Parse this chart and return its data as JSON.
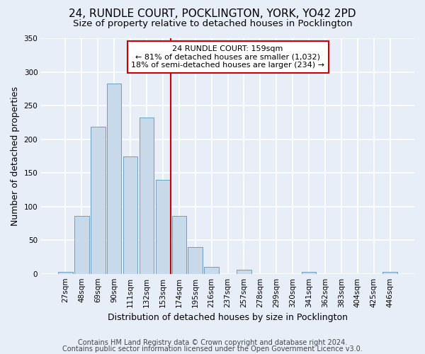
{
  "title1": "24, RUNDLE COURT, POCKLINGTON, YORK, YO42 2PD",
  "title2": "Size of property relative to detached houses in Pocklington",
  "xlabel": "Distribution of detached houses by size in Pocklington",
  "ylabel": "Number of detached properties",
  "footnote1": "Contains HM Land Registry data © Crown copyright and database right 2024.",
  "footnote2": "Contains public sector information licensed under the Open Government Licence v3.0.",
  "categories": [
    "27sqm",
    "48sqm",
    "69sqm",
    "90sqm",
    "111sqm",
    "132sqm",
    "153sqm",
    "174sqm",
    "195sqm",
    "216sqm",
    "237sqm",
    "257sqm",
    "278sqm",
    "299sqm",
    "320sqm",
    "341sqm",
    "362sqm",
    "383sqm",
    "404sqm",
    "425sqm",
    "446sqm"
  ],
  "values": [
    3,
    86,
    218,
    283,
    174,
    232,
    140,
    86,
    40,
    10,
    0,
    6,
    0,
    0,
    0,
    3,
    0,
    0,
    0,
    0,
    3
  ],
  "bar_color": "#c8d9ea",
  "bar_edge_color": "#6a9ec2",
  "vline_index": 6.5,
  "vline_color": "#cc0000",
  "annotation_text": "24 RUNDLE COURT: 159sqm\n← 81% of detached houses are smaller (1,032)\n18% of semi-detached houses are larger (234) →",
  "annotation_box_color": "white",
  "annotation_box_edge_color": "#cc0000",
  "ylim": [
    0,
    350
  ],
  "yticks": [
    0,
    50,
    100,
    150,
    200,
    250,
    300,
    350
  ],
  "background_color": "#e8eef8",
  "plot_background_color": "#e8eef8",
  "grid_color": "white",
  "title1_fontsize": 11,
  "title2_fontsize": 9.5,
  "axis_label_fontsize": 9,
  "tick_fontsize": 7.5,
  "annotation_fontsize": 8,
  "footnote_fontsize": 7
}
